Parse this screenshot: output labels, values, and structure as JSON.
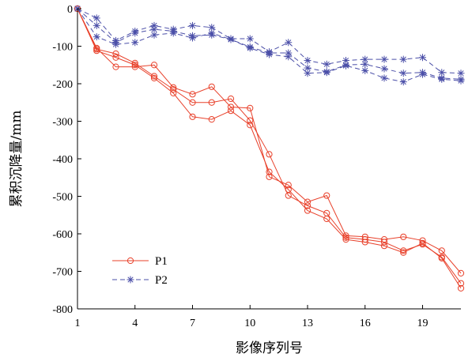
{
  "chart_data": {
    "type": "line",
    "xlabel": "影像序列号",
    "ylabel": "累积沉降量/mm",
    "xlim": [
      1,
      21
    ],
    "ylim": [
      -800,
      0
    ],
    "x_ticks": [
      1,
      4,
      7,
      10,
      13,
      16,
      19
    ],
    "y_ticks": [
      0,
      -100,
      -200,
      -300,
      -400,
      -500,
      -600,
      -700,
      -800
    ],
    "legend_position": "lower-left",
    "grid": false,
    "x": [
      1,
      2,
      3,
      4,
      5,
      6,
      7,
      8,
      9,
      10,
      11,
      12,
      13,
      14,
      15,
      16,
      17,
      18,
      19,
      20,
      21
    ],
    "series": [
      {
        "name": "P1",
        "marker": "circle",
        "line_style": "solid",
        "color": "#e8402a",
        "values": [
          0,
          -105,
          -155,
          -155,
          -150,
          -210,
          -228,
          -208,
          -262,
          -265,
          -448,
          -470,
          -515,
          -498,
          -605,
          -608,
          -615,
          -608,
          -618,
          -645,
          -705
        ]
      },
      {
        "name": "",
        "marker": "circle",
        "line_style": "solid",
        "color": "#e8402a",
        "values": [
          0,
          -108,
          -120,
          -145,
          -180,
          -215,
          -250,
          -250,
          -240,
          -298,
          -388,
          -498,
          -525,
          -545,
          -610,
          -615,
          -622,
          -645,
          -628,
          -662,
          -732
        ]
      },
      {
        "name": "",
        "marker": "circle",
        "line_style": "solid",
        "color": "#e8402a",
        "values": [
          0,
          -112,
          -130,
          -150,
          -185,
          -225,
          -288,
          -295,
          -272,
          -310,
          -435,
          -482,
          -538,
          -560,
          -615,
          -622,
          -632,
          -650,
          -625,
          -665,
          -745
        ]
      },
      {
        "name": "P2",
        "marker": "asterisk",
        "line_style": "dashed",
        "color": "#4b4fa8",
        "values": [
          0,
          -25,
          -85,
          -60,
          -45,
          -55,
          -45,
          -50,
          -80,
          -80,
          -115,
          -90,
          -138,
          -148,
          -138,
          -135,
          -135,
          -135,
          -130,
          -170,
          -172
        ]
      },
      {
        "name": "",
        "marker": "asterisk",
        "line_style": "dashed",
        "color": "#4b4fa8",
        "values": [
          0,
          -45,
          -90,
          -65,
          -55,
          -60,
          -72,
          -70,
          -82,
          -102,
          -118,
          -118,
          -158,
          -168,
          -150,
          -148,
          -160,
          -172,
          -170,
          -185,
          -188
        ]
      },
      {
        "name": "",
        "marker": "asterisk",
        "line_style": "dashed",
        "color": "#4b4fa8",
        "values": [
          0,
          -75,
          -95,
          -90,
          -70,
          -65,
          -78,
          -65,
          -82,
          -105,
          -122,
          -128,
          -172,
          -170,
          -152,
          -165,
          -185,
          -195,
          -175,
          -188,
          -192
        ]
      }
    ]
  }
}
